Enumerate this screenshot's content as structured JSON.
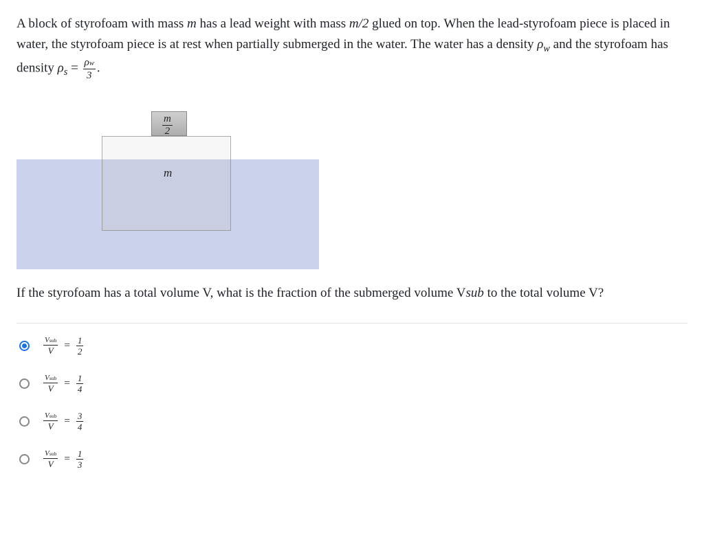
{
  "question": {
    "part1_a": "A block of styrofoam with mass ",
    "m": "m",
    "part1_b": " has a lead weight with mass ",
    "m_half": "m/2",
    "part1_c": " glued on top. When the lead-styrofoam piece is placed in water, the styrofoam piece is at rest when partially submerged in the water. The water has a density ",
    "rho_w": "ρ",
    "rho_w_sub": "w",
    "part1_d": " and the styrofoam has density ",
    "rho_s": "ρ",
    "rho_s_sub": "s",
    "equals": " = ",
    "rhs_num": "ρw",
    "rhs_den": "3",
    "period": ".",
    "part2_a": "If the styrofoam has a total volume ",
    "V": "V",
    "part2_b": ", what is the fraction of the submerged volume ",
    "Vsub": "V",
    "Vsub_sub": "sub",
    "part2_c": " to the total volume ",
    "part2_d": "?"
  },
  "diagram": {
    "lead_label_num": "m",
    "lead_label_den": "2",
    "m_label": "m",
    "colors": {
      "water": "#c3cde8",
      "styrofoam": "#f7f7f7",
      "lead_top": "#d0d0d0",
      "lead_bottom": "#adadad"
    }
  },
  "options": [
    {
      "lhs_num": "Vsub",
      "lhs_den": "V",
      "rhs_num": "1",
      "rhs_den": "2",
      "selected": true
    },
    {
      "lhs_num": "Vsub",
      "lhs_den": "V",
      "rhs_num": "1",
      "rhs_den": "4",
      "selected": false
    },
    {
      "lhs_num": "Vsub",
      "lhs_den": "V",
      "rhs_num": "3",
      "rhs_den": "4",
      "selected": false
    },
    {
      "lhs_num": "Vsub",
      "lhs_den": "V",
      "rhs_num": "1",
      "rhs_den": "3",
      "selected": false
    }
  ]
}
